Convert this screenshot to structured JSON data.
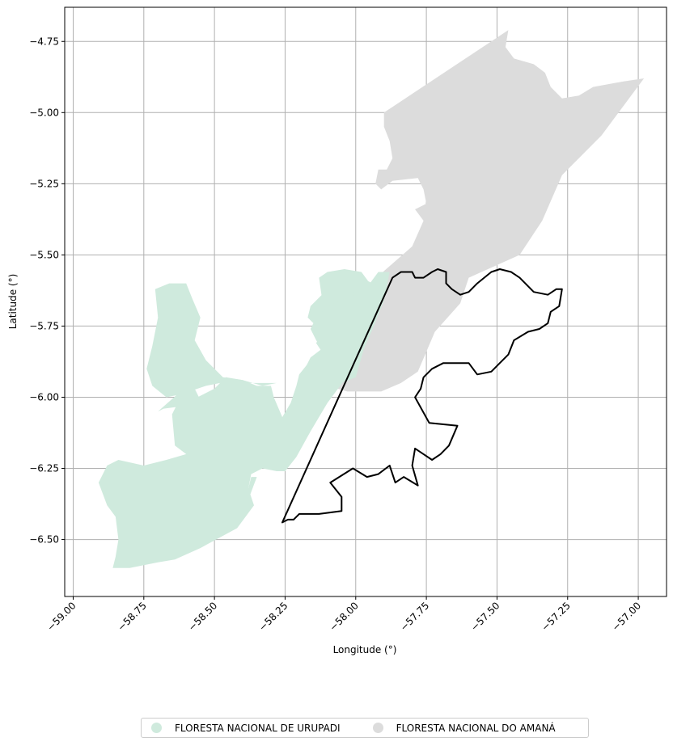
{
  "chart_data": {
    "type": "map",
    "xlabel": "Longitude (°)",
    "ylabel": "Latitude (°)",
    "xlim": [
      -59.03,
      -56.9
    ],
    "ylim": [
      -6.7,
      -4.63
    ],
    "grid": true,
    "x_ticks": [
      -59.0,
      -58.75,
      -58.5,
      -58.25,
      -58.0,
      -57.75,
      -57.5,
      -57.25,
      -57.0
    ],
    "x_tick_labels": [
      "−59.00",
      "−58.75",
      "−58.50",
      "−58.25",
      "−58.00",
      "−57.75",
      "−57.50",
      "−57.25",
      "−57.00"
    ],
    "y_ticks": [
      -4.75,
      -5.0,
      -5.25,
      -5.5,
      -5.75,
      -6.0,
      -6.25,
      -6.5
    ],
    "y_tick_labels": [
      "−4.75",
      "−5.00",
      "−5.25",
      "−5.50",
      "−5.75",
      "−6.00",
      "−6.25",
      "−6.50"
    ],
    "legend_position": "bottom-center",
    "layers": [
      {
        "name": "FLORESTA NACIONAL DE URUPADI",
        "color": "#cfeadd",
        "fill": true,
        "polygon": [
          [
            -57.88,
            -5.56
          ],
          [
            -57.92,
            -5.56
          ],
          [
            -57.95,
            -5.6
          ],
          [
            -57.99,
            -5.62
          ],
          [
            -58.03,
            -5.62
          ],
          [
            -58.1,
            -5.61
          ],
          [
            -58.12,
            -5.64
          ],
          [
            -58.16,
            -5.68
          ],
          [
            -58.17,
            -5.72
          ],
          [
            -58.15,
            -5.74
          ],
          [
            -58.12,
            -5.77
          ],
          [
            -58.14,
            -5.81
          ],
          [
            -58.12,
            -5.84
          ],
          [
            -58.16,
            -5.87
          ],
          [
            -58.2,
            -5.92
          ],
          [
            -58.21,
            -5.96
          ],
          [
            -58.23,
            -6.02
          ],
          [
            -58.26,
            -6.07
          ],
          [
            -58.29,
            -6.0
          ],
          [
            -58.3,
            -5.96
          ],
          [
            -58.35,
            -5.96
          ],
          [
            -58.4,
            -5.94
          ],
          [
            -58.46,
            -5.93
          ],
          [
            -58.5,
            -5.97
          ],
          [
            -58.56,
            -6.0
          ],
          [
            -58.62,
            -6.0
          ],
          [
            -58.64,
            -6.04
          ],
          [
            -58.65,
            -6.06
          ],
          [
            -58.64,
            -6.17
          ],
          [
            -58.6,
            -6.2
          ],
          [
            -58.67,
            -6.22
          ],
          [
            -58.75,
            -6.24
          ],
          [
            -58.84,
            -6.22
          ],
          [
            -58.88,
            -6.24
          ],
          [
            -58.9,
            -6.28
          ],
          [
            -58.91,
            -6.3
          ],
          [
            -58.88,
            -6.38
          ],
          [
            -58.85,
            -6.42
          ],
          [
            -58.84,
            -6.5
          ],
          [
            -58.85,
            -6.56
          ],
          [
            -58.86,
            -6.6
          ],
          [
            -58.8,
            -6.6
          ],
          [
            -58.7,
            -6.58
          ],
          [
            -58.64,
            -6.57
          ],
          [
            -58.55,
            -6.53
          ],
          [
            -58.42,
            -6.46
          ],
          [
            -58.36,
            -6.38
          ],
          [
            -58.38,
            -6.32
          ],
          [
            -58.37,
            -6.27
          ],
          [
            -58.33,
            -6.25
          ],
          [
            -58.28,
            -6.26
          ],
          [
            -58.25,
            -6.26
          ],
          [
            -58.21,
            -6.21
          ],
          [
            -58.16,
            -6.12
          ],
          [
            -58.1,
            -6.02
          ],
          [
            -58.04,
            -5.94
          ],
          [
            -57.98,
            -5.85
          ],
          [
            -57.94,
            -5.76
          ],
          [
            -57.9,
            -5.66
          ]
        ],
        "polygon2": [
          [
            -57.95,
            -5.6
          ],
          [
            -58.01,
            -5.63
          ],
          [
            -58.05,
            -5.66
          ],
          [
            -58.12,
            -5.65
          ],
          [
            -58.13,
            -5.58
          ],
          [
            -58.1,
            -5.56
          ],
          [
            -58.04,
            -5.55
          ],
          [
            -57.98,
            -5.56
          ]
        ],
        "polygon3": [
          [
            -58.28,
            -5.95
          ],
          [
            -58.33,
            -5.96
          ],
          [
            -58.4,
            -5.94
          ],
          [
            -58.47,
            -5.93
          ],
          [
            -58.53,
            -5.87
          ],
          [
            -58.57,
            -5.8
          ],
          [
            -58.55,
            -5.72
          ],
          [
            -58.58,
            -5.65
          ],
          [
            -58.6,
            -5.6
          ],
          [
            -58.66,
            -5.6
          ],
          [
            -58.71,
            -5.62
          ],
          [
            -58.7,
            -5.72
          ],
          [
            -58.72,
            -5.82
          ],
          [
            -58.74,
            -5.9
          ],
          [
            -58.72,
            -5.96
          ],
          [
            -58.67,
            -6.0
          ],
          [
            -58.62,
            -5.99
          ],
          [
            -58.53,
            -5.96
          ],
          [
            -58.48,
            -5.95
          ]
        ],
        "polygon4": [
          [
            -58.58,
            -5.95
          ],
          [
            -58.62,
            -5.98
          ],
          [
            -58.7,
            -6.05
          ],
          [
            -58.68,
            -6.04
          ],
          [
            -58.6,
            -6.03
          ],
          [
            -58.55,
            -6.01
          ]
        ],
        "polygon5": [
          [
            -58.35,
            -6.28
          ],
          [
            -58.38,
            -6.36
          ],
          [
            -58.4,
            -6.38
          ],
          [
            -58.38,
            -6.32
          ],
          [
            -58.37,
            -6.28
          ]
        ],
        "polygon6": [
          [
            -57.98,
            -5.58
          ],
          [
            -58.0,
            -5.64
          ],
          [
            -58.05,
            -5.66
          ],
          [
            -58.1,
            -5.68
          ],
          [
            -58.14,
            -5.72
          ],
          [
            -58.16,
            -5.76
          ],
          [
            -58.14,
            -5.8
          ],
          [
            -58.12,
            -5.83
          ],
          [
            -58.16,
            -5.86
          ],
          [
            -58.18,
            -5.9
          ],
          [
            -58.12,
            -5.93
          ],
          [
            -58.05,
            -5.95
          ],
          [
            -58.0,
            -5.93
          ],
          [
            -57.98,
            -5.86
          ],
          [
            -57.95,
            -5.76
          ],
          [
            -57.93,
            -5.68
          ],
          [
            -57.9,
            -5.62
          ]
        ]
      },
      {
        "name": "FLORESTA NACIONAL DO AMANÁ",
        "color": "#dcdcdc",
        "fill": true,
        "polygon": [
          [
            -57.46,
            -4.71
          ],
          [
            -57.47,
            -4.77
          ],
          [
            -57.44,
            -4.81
          ],
          [
            -57.37,
            -4.83
          ],
          [
            -57.33,
            -4.86
          ],
          [
            -57.31,
            -4.91
          ],
          [
            -57.27,
            -4.95
          ],
          [
            -57.21,
            -4.94
          ],
          [
            -57.16,
            -4.91
          ],
          [
            -57.05,
            -4.89
          ],
          [
            -56.98,
            -4.88
          ],
          [
            -57.13,
            -5.08
          ],
          [
            -57.27,
            -5.22
          ],
          [
            -57.34,
            -5.38
          ],
          [
            -57.42,
            -5.5
          ],
          [
            -57.6,
            -5.58
          ],
          [
            -57.63,
            -5.67
          ],
          [
            -57.72,
            -5.77
          ],
          [
            -57.78,
            -5.91
          ],
          [
            -57.84,
            -5.95
          ],
          [
            -57.91,
            -5.98
          ],
          [
            -58.03,
            -5.98
          ],
          [
            -58.1,
            -5.96
          ],
          [
            -58.14,
            -5.9
          ],
          [
            -58.1,
            -5.8
          ],
          [
            -58.02,
            -5.7
          ],
          [
            -57.95,
            -5.6
          ],
          [
            -57.8,
            -5.47
          ],
          [
            -57.76,
            -5.38
          ],
          [
            -57.79,
            -5.34
          ],
          [
            -57.75,
            -5.32
          ],
          [
            -57.76,
            -5.27
          ],
          [
            -57.78,
            -5.23
          ],
          [
            -57.87,
            -5.24
          ],
          [
            -57.91,
            -5.27
          ],
          [
            -57.93,
            -5.25
          ],
          [
            -57.92,
            -5.2
          ],
          [
            -57.89,
            -5.2
          ],
          [
            -57.87,
            -5.16
          ],
          [
            -57.88,
            -5.1
          ],
          [
            -57.9,
            -5.05
          ],
          [
            -57.9,
            -5.0
          ]
        ],
        "outline": [
          [
            -57.91,
            -5.0
          ],
          [
            -57.46,
            -4.71
          ],
          [
            -57.46,
            -4.77
          ],
          [
            -57.43,
            -4.8
          ],
          [
            -57.38,
            -4.83
          ],
          [
            -57.34,
            -4.84
          ],
          [
            -57.3,
            -4.87
          ],
          [
            -57.29,
            -4.94
          ],
          [
            -57.25,
            -4.94
          ],
          [
            -57.21,
            -4.93
          ],
          [
            -57.16,
            -4.9
          ],
          [
            -57.1,
            -4.88
          ],
          [
            -57.04,
            -4.89
          ],
          [
            -57.0,
            -4.88
          ],
          [
            -57.13,
            -5.08
          ],
          [
            -57.23,
            -5.2
          ],
          [
            -57.29,
            -5.38
          ],
          [
            -57.38,
            -5.5
          ],
          [
            -57.47,
            -5.64
          ],
          [
            -57.56,
            -5.74
          ],
          [
            -57.62,
            -5.82
          ],
          [
            -57.7,
            -5.93
          ],
          [
            -57.78,
            -5.98
          ],
          [
            -57.86,
            -5.99
          ],
          [
            -57.93,
            -6.0
          ],
          [
            -57.99,
            -5.96
          ],
          [
            -58.02,
            -5.88
          ],
          [
            -58.0,
            -5.8
          ],
          [
            -57.97,
            -5.7
          ],
          [
            -57.92,
            -5.59
          ],
          [
            -57.84,
            -5.5
          ],
          [
            -57.79,
            -5.42
          ],
          [
            -57.77,
            -5.34
          ],
          [
            -57.76,
            -5.3
          ],
          [
            -57.8,
            -5.25
          ],
          [
            -57.86,
            -5.26
          ],
          [
            -57.91,
            -5.26
          ],
          [
            -57.93,
            -5.23
          ],
          [
            -57.9,
            -5.2
          ],
          [
            -57.88,
            -5.16
          ],
          [
            -57.89,
            -5.1
          ],
          [
            -57.9,
            -5.05
          ]
        ]
      },
      {
        "name": "outline",
        "color": "#000000",
        "fill": false,
        "polygon": [
          [
            -58.26,
            -6.44
          ],
          [
            -57.87,
            -5.58
          ],
          [
            -57.84,
            -5.56
          ],
          [
            -57.8,
            -5.56
          ],
          [
            -57.79,
            -5.58
          ],
          [
            -57.76,
            -5.58
          ],
          [
            -57.73,
            -5.56
          ],
          [
            -57.71,
            -5.55
          ],
          [
            -57.68,
            -5.56
          ],
          [
            -57.68,
            -5.6
          ],
          [
            -57.66,
            -5.62
          ],
          [
            -57.63,
            -5.64
          ],
          [
            -57.6,
            -5.63
          ],
          [
            -57.57,
            -5.6
          ],
          [
            -57.52,
            -5.56
          ],
          [
            -57.49,
            -5.55
          ],
          [
            -57.45,
            -5.56
          ],
          [
            -57.42,
            -5.58
          ],
          [
            -57.37,
            -5.63
          ],
          [
            -57.32,
            -5.64
          ],
          [
            -57.29,
            -5.62
          ],
          [
            -57.27,
            -5.62
          ],
          [
            -57.28,
            -5.68
          ],
          [
            -57.31,
            -5.7
          ],
          [
            -57.32,
            -5.74
          ],
          [
            -57.35,
            -5.76
          ],
          [
            -57.39,
            -5.77
          ],
          [
            -57.44,
            -5.8
          ],
          [
            -57.46,
            -5.85
          ],
          [
            -57.49,
            -5.88
          ],
          [
            -57.52,
            -5.91
          ],
          [
            -57.57,
            -5.92
          ],
          [
            -57.6,
            -5.88
          ],
          [
            -57.64,
            -5.88
          ],
          [
            -57.69,
            -5.88
          ],
          [
            -57.73,
            -5.9
          ],
          [
            -57.76,
            -5.93
          ],
          [
            -57.77,
            -5.97
          ],
          [
            -57.79,
            -6.0
          ],
          [
            -57.74,
            -6.09
          ],
          [
            -57.64,
            -6.1
          ],
          [
            -57.67,
            -6.17
          ],
          [
            -57.7,
            -6.2
          ],
          [
            -57.73,
            -6.22
          ],
          [
            -57.76,
            -6.2
          ],
          [
            -57.79,
            -6.18
          ],
          [
            -57.8,
            -6.24
          ],
          [
            -57.78,
            -6.31
          ],
          [
            -57.83,
            -6.28
          ],
          [
            -57.86,
            -6.3
          ],
          [
            -57.88,
            -6.24
          ],
          [
            -57.92,
            -6.27
          ],
          [
            -57.96,
            -6.28
          ],
          [
            -58.01,
            -6.25
          ],
          [
            -58.09,
            -6.3
          ],
          [
            -58.05,
            -6.35
          ],
          [
            -58.05,
            -6.4
          ],
          [
            -58.13,
            -6.41
          ],
          [
            -58.2,
            -6.41
          ],
          [
            -58.22,
            -6.43
          ],
          [
            -58.24,
            -6.43
          ]
        ]
      }
    ],
    "legend": [
      "FLORESTA NACIONAL DE URUPADI",
      "FLORESTA NACIONAL DO AMANÁ"
    ]
  }
}
